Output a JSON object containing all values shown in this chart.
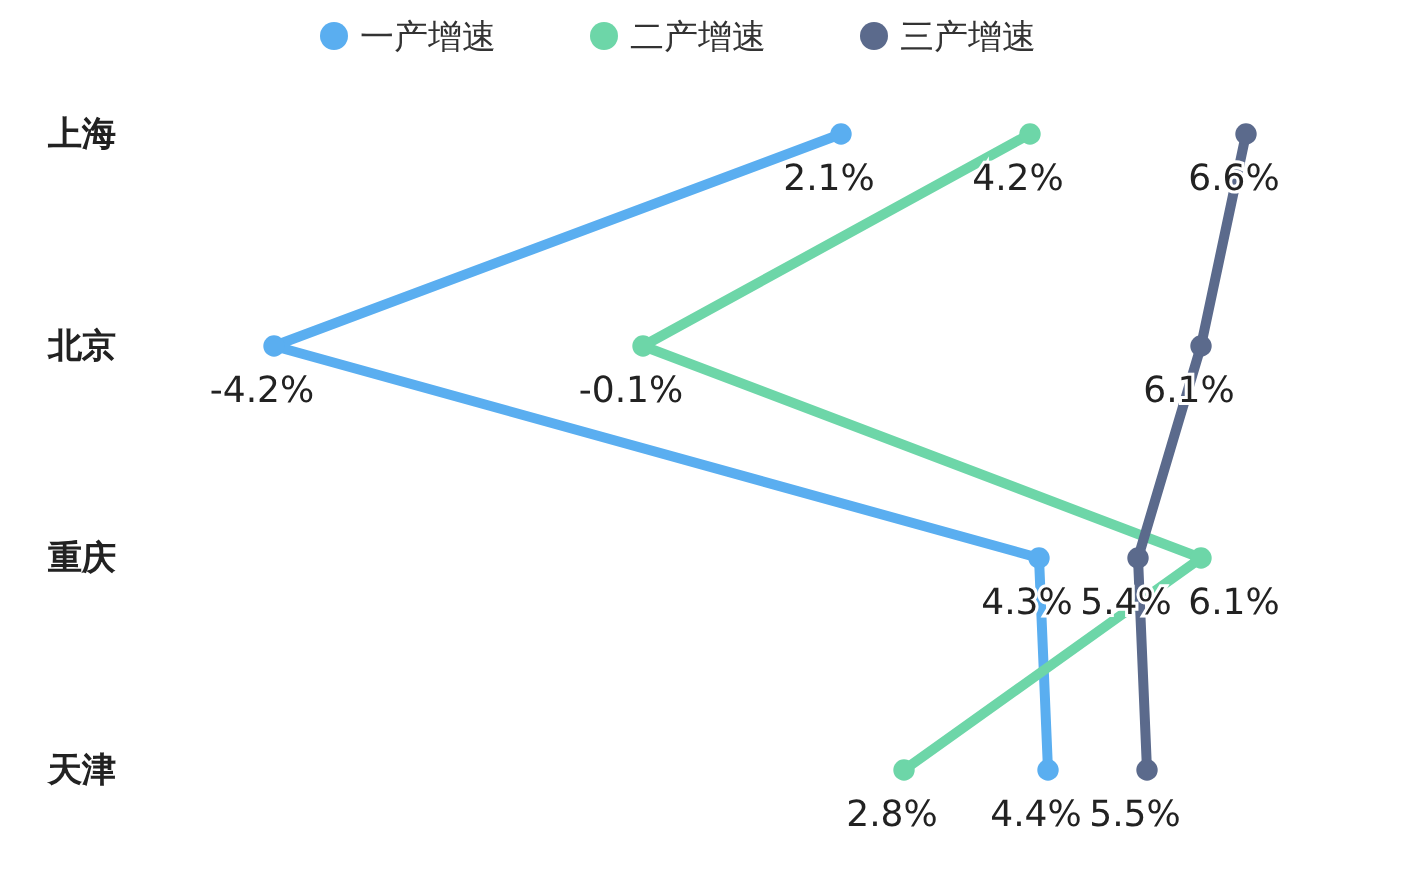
{
  "chart_data": {
    "type": "line",
    "orientation": "horizontal",
    "categories": [
      "上海",
      "北京",
      "重庆",
      "天津"
    ],
    "series": [
      {
        "name": "一产增速",
        "color": "#5aaef0",
        "values": [
          2.1,
          -4.2,
          4.3,
          4.4
        ],
        "value_labels": [
          "2.1%",
          "-4.2%",
          "4.3%",
          "4.4%"
        ]
      },
      {
        "name": "二产增速",
        "color": "#6dd6a8",
        "values": [
          4.2,
          -0.1,
          6.1,
          2.8
        ],
        "value_labels": [
          "4.2%",
          "-0.1%",
          "6.1%",
          "2.8%"
        ]
      },
      {
        "name": "三产增速",
        "color": "#5b6a8c",
        "values": [
          6.6,
          6.1,
          5.4,
          5.5
        ],
        "value_labels": [
          "6.6%",
          "6.1%",
          "5.4%",
          "5.5%"
        ]
      }
    ],
    "legend": "top",
    "marker": "circle"
  }
}
